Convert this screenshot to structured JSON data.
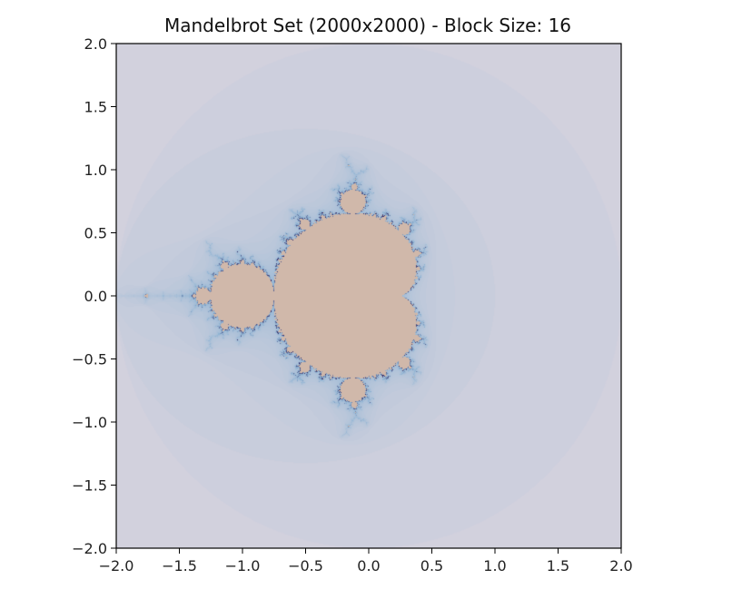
{
  "chart_data": {
    "type": "heatmap",
    "title": "Mandelbrot Set (2000x2000) - Block Size: 16",
    "xlabel": "",
    "ylabel": "",
    "xlim": [
      -2.0,
      2.0
    ],
    "ylim": [
      -2.0,
      2.0
    ],
    "x_ticks": [
      "−2.0",
      "−1.5",
      "−1.0",
      "−0.5",
      "0.0",
      "0.5",
      "1.0",
      "1.5",
      "2.0"
    ],
    "x_tick_values": [
      -2.0,
      -1.5,
      -1.0,
      -0.5,
      0.0,
      0.5,
      1.0,
      1.5,
      2.0
    ],
    "y_ticks": [
      "2.0",
      "1.5",
      "1.0",
      "0.5",
      "0.0",
      "−0.5",
      "−1.0",
      "−1.5",
      "−2.0"
    ],
    "y_tick_values": [
      2.0,
      1.5,
      1.0,
      0.5,
      0.0,
      -0.5,
      -1.0,
      -1.5,
      -2.0
    ],
    "grid": false,
    "resolution": [
      2000,
      2000
    ],
    "block_size": 16,
    "colors": {
      "background": "#ddd6df",
      "set_interior": "#d0b8aa",
      "boundary": "#2a1f5c",
      "filament": "#8fb4d4"
    }
  }
}
